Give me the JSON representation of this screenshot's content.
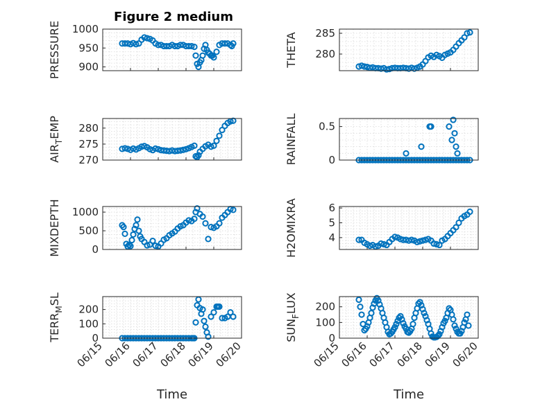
{
  "figure": {
    "title": "Figure 2 medium"
  },
  "colors": {
    "marker": "#0072BD",
    "axis": "#262626",
    "grid": "#d9d9d9"
  },
  "chart_data": [
    {
      "id": "pressure",
      "type": "scatter",
      "marker": "circle-open",
      "title": "Figure 2 medium",
      "xlabel": "",
      "ylabel": "PRESSURE",
      "xlim": [
        "06/15",
        "06/20"
      ],
      "ylim": [
        890,
        1000
      ],
      "yticks": [
        900,
        950,
        1000
      ],
      "grid": true,
      "series": [
        {
          "x": [
            15.7,
            15.8,
            15.9,
            16.0,
            16.1,
            16.2,
            16.3,
            16.4,
            16.5,
            16.6,
            16.7,
            16.8,
            16.9,
            17.0,
            17.1,
            17.2,
            17.3,
            17.4,
            17.5,
            17.6,
            17.7,
            17.8,
            17.9,
            18.0,
            18.1,
            18.2,
            18.3,
            18.35,
            18.4,
            18.45,
            18.5,
            18.55,
            18.6,
            18.65,
            18.7,
            18.75,
            18.8,
            18.85,
            18.9,
            18.95,
            19.0,
            19.1,
            19.2,
            19.3,
            19.4,
            19.5,
            19.6,
            19.65,
            19.7
          ],
          "y": [
            962,
            962,
            962,
            960,
            963,
            960,
            962,
            972,
            978,
            976,
            974,
            970,
            962,
            958,
            958,
            955,
            955,
            955,
            958,
            955,
            955,
            958,
            958,
            955,
            955,
            955,
            953,
            930,
            908,
            900,
            912,
            918,
            930,
            948,
            958,
            945,
            938,
            935,
            930,
            930,
            925,
            940,
            958,
            962,
            962,
            962,
            958,
            955,
            962
          ]
        }
      ]
    },
    {
      "id": "theta",
      "type": "scatter",
      "marker": "circle-open",
      "xlabel": "",
      "ylabel": "THETA",
      "xlim": [
        "06/15",
        "06/20"
      ],
      "ylim": [
        276,
        286
      ],
      "yticks": [
        280,
        285
      ],
      "grid": true,
      "series": [
        {
          "x": [
            15.7,
            15.8,
            15.9,
            16.0,
            16.1,
            16.2,
            16.3,
            16.4,
            16.5,
            16.6,
            16.7,
            16.8,
            16.9,
            17.0,
            17.1,
            17.2,
            17.3,
            17.4,
            17.5,
            17.6,
            17.7,
            17.8,
            17.9,
            18.0,
            18.1,
            18.2,
            18.3,
            18.4,
            18.5,
            18.6,
            18.7,
            18.8,
            18.9,
            19.0,
            19.1,
            19.2,
            19.3,
            19.4,
            19.5,
            19.6,
            19.7
          ],
          "y": [
            277,
            277.2,
            277,
            276.9,
            276.7,
            276.8,
            276.6,
            276.6,
            276.5,
            276.6,
            276.3,
            276.4,
            276.6,
            276.7,
            276.6,
            276.6,
            276.7,
            276.6,
            276.5,
            276.7,
            276.5,
            276.7,
            277,
            277.5,
            278.3,
            279.2,
            279.6,
            279.3,
            279.8,
            279.5,
            279.1,
            279.8,
            280.1,
            280.4,
            281,
            281.8,
            282.6,
            283.3,
            284,
            285,
            285.2
          ]
        }
      ]
    },
    {
      "id": "air_temp",
      "type": "scatter",
      "marker": "circle-open",
      "xlabel": "",
      "ylabel": "AIR_TEMP",
      "xlim": [
        "06/15",
        "06/20"
      ],
      "ylim": [
        270,
        283
      ],
      "yticks": [
        270,
        275,
        280
      ],
      "grid": true,
      "series": [
        {
          "x": [
            15.7,
            15.8,
            15.9,
            16.0,
            16.1,
            16.2,
            16.3,
            16.4,
            16.5,
            16.6,
            16.7,
            16.8,
            16.9,
            17.0,
            17.1,
            17.2,
            17.3,
            17.4,
            17.5,
            17.6,
            17.7,
            17.8,
            17.9,
            18.0,
            18.1,
            18.2,
            18.3,
            18.35,
            18.4,
            18.45,
            18.5,
            18.6,
            18.7,
            18.8,
            18.9,
            19.0,
            19.1,
            19.2,
            19.3,
            19.4,
            19.5,
            19.6,
            19.7
          ],
          "y": [
            273.5,
            273.7,
            273.5,
            273.2,
            273.6,
            273.3,
            273.7,
            274.2,
            274.4,
            274,
            273.4,
            273.1,
            273.6,
            273.4,
            273.1,
            273,
            272.9,
            272.8,
            273,
            272.8,
            272.9,
            273,
            273.2,
            273.4,
            273.7,
            274.1,
            274.5,
            271.2,
            270.9,
            271.5,
            272.6,
            273.5,
            274.3,
            274.8,
            274.2,
            274.5,
            276,
            277.6,
            279.4,
            280.7,
            281.6,
            282.1,
            282.3
          ]
        }
      ]
    },
    {
      "id": "rainfall",
      "type": "scatter",
      "marker": "circle-open",
      "xlabel": "",
      "ylabel": "RAINFALL",
      "xlim": [
        "06/15",
        "06/20"
      ],
      "ylim": [
        0,
        0.62
      ],
      "yticks": [
        0,
        0.5
      ],
      "grid": true,
      "series": [
        {
          "x": [
            15.7,
            15.8,
            15.9,
            16.0,
            16.1,
            16.2,
            16.3,
            16.4,
            16.5,
            16.6,
            16.7,
            16.8,
            16.9,
            17.0,
            17.1,
            17.2,
            17.3,
            17.4,
            17.5,
            17.6,
            17.7,
            17.8,
            17.9,
            18.0,
            18.1,
            18.2,
            18.3,
            18.4,
            18.5,
            18.6,
            18.7,
            18.8,
            18.9,
            19.0,
            19.1,
            19.2,
            19.3,
            19.4,
            19.5,
            19.6,
            19.7,
            17.4,
            17.95,
            18.25,
            18.3,
            18.95,
            19.1,
            19.15,
            19.05,
            19.2,
            19.25
          ],
          "y": [
            0,
            0,
            0,
            0,
            0,
            0,
            0,
            0,
            0,
            0,
            0,
            0,
            0,
            0,
            0,
            0,
            0,
            0,
            0,
            0,
            0,
            0,
            0,
            0,
            0,
            0,
            0,
            0,
            0,
            0,
            0,
            0,
            0,
            0,
            0,
            0,
            0,
            0,
            0,
            0,
            0,
            0.1,
            0.2,
            0.5,
            0.5,
            0.5,
            0.6,
            0.4,
            0.3,
            0.2,
            0.1
          ]
        }
      ]
    },
    {
      "id": "mixdepth",
      "type": "scatter",
      "marker": "circle-open",
      "xlabel": "",
      "ylabel": "MIXDEPTH",
      "xlim": [
        "06/15",
        "06/20"
      ],
      "ylim": [
        0,
        1150
      ],
      "yticks": [
        0,
        500,
        1000
      ],
      "grid": true,
      "series": [
        {
          "x": [
            15.7,
            15.75,
            15.8,
            15.85,
            15.9,
            15.95,
            16.0,
            16.05,
            16.1,
            16.15,
            16.2,
            16.25,
            16.3,
            16.35,
            16.4,
            16.5,
            16.6,
            16.7,
            16.8,
            16.9,
            17.0,
            17.1,
            17.2,
            17.3,
            17.4,
            17.5,
            17.6,
            17.7,
            17.8,
            17.9,
            18.0,
            18.1,
            18.2,
            18.3,
            18.35,
            18.4,
            18.5,
            18.6,
            18.7,
            18.8,
            18.9,
            19.0,
            19.1,
            19.2,
            19.3,
            19.4,
            19.5,
            19.6,
            19.7
          ],
          "y": [
            650,
            600,
            420,
            150,
            80,
            120,
            90,
            250,
            400,
            550,
            650,
            800,
            500,
            350,
            280,
            200,
            110,
            130,
            230,
            100,
            80,
            160,
            260,
            300,
            380,
            430,
            480,
            560,
            620,
            650,
            720,
            780,
            760,
            820,
            1000,
            1100,
            950,
            880,
            700,
            280,
            600,
            580,
            620,
            700,
            850,
            920,
            1000,
            1080,
            1060
          ]
        }
      ]
    },
    {
      "id": "h2omixra",
      "type": "scatter",
      "marker": "circle-open",
      "xlabel": "",
      "ylabel": "H2OMIXRA",
      "xlim": [
        "06/15",
        "06/20"
      ],
      "ylim": [
        3.2,
        6.1
      ],
      "yticks": [
        4,
        5,
        6
      ],
      "grid": true,
      "series": [
        {
          "x": [
            15.7,
            15.8,
            15.9,
            16.0,
            16.1,
            16.2,
            16.3,
            16.4,
            16.5,
            16.6,
            16.7,
            16.8,
            16.9,
            17.0,
            17.1,
            17.2,
            17.3,
            17.4,
            17.5,
            17.6,
            17.7,
            17.8,
            17.9,
            18.0,
            18.1,
            18.2,
            18.3,
            18.4,
            18.5,
            18.6,
            18.7,
            18.8,
            18.9,
            19.0,
            19.1,
            19.2,
            19.3,
            19.4,
            19.5,
            19.6,
            19.7
          ],
          "y": [
            3.85,
            3.85,
            3.65,
            3.55,
            3.45,
            3.5,
            3.4,
            3.45,
            3.6,
            3.55,
            3.5,
            3.7,
            3.9,
            4.05,
            4.0,
            3.9,
            3.85,
            3.85,
            3.8,
            3.85,
            3.8,
            3.7,
            3.75,
            3.8,
            3.85,
            3.9,
            3.8,
            3.6,
            3.55,
            3.5,
            3.8,
            3.9,
            4.1,
            4.3,
            4.5,
            4.7,
            5.0,
            5.3,
            5.45,
            5.55,
            5.75
          ]
        }
      ]
    },
    {
      "id": "terr_msl",
      "type": "scatter",
      "marker": "circle-open",
      "xlabel": "Time",
      "ylabel": "TERR_MSL",
      "xlim": [
        "06/15",
        "06/20"
      ],
      "ylim": [
        0,
        290
      ],
      "yticks": [
        0,
        100,
        200
      ],
      "grid": true,
      "series": [
        {
          "x": [
            15.7,
            15.8,
            15.9,
            16.0,
            16.1,
            16.2,
            16.3,
            16.4,
            16.5,
            16.6,
            16.7,
            16.8,
            16.9,
            17.0,
            17.1,
            17.2,
            17.3,
            17.4,
            17.5,
            17.6,
            17.7,
            17.8,
            17.9,
            18.0,
            18.1,
            18.2,
            18.25,
            18.3,
            18.35,
            18.4,
            18.45,
            18.5,
            18.55,
            18.6,
            18.65,
            18.7,
            18.75,
            18.8,
            18.9,
            19.0,
            19.1,
            19.15,
            19.2,
            19.3,
            19.4,
            19.5,
            19.6,
            19.7
          ],
          "y": [
            0,
            0,
            0,
            0,
            0,
            0,
            0,
            0,
            0,
            0,
            0,
            0,
            0,
            0,
            0,
            0,
            0,
            0,
            0,
            0,
            0,
            0,
            0,
            0,
            0,
            0,
            0,
            0,
            110,
            230,
            270,
            210,
            170,
            200,
            120,
            80,
            40,
            10,
            150,
            180,
            220,
            220,
            220,
            140,
            140,
            150,
            180,
            150
          ]
        }
      ]
    },
    {
      "id": "sun_flux",
      "type": "scatter",
      "marker": "circle-open",
      "xlabel": "Time",
      "ylabel": "SUN_FLUX",
      "xlim": [
        "06/15",
        "06/20"
      ],
      "ylim": [
        0,
        265
      ],
      "yticks": [
        0,
        100,
        200
      ],
      "grid": true,
      "series": [
        {
          "x": [
            15.7,
            15.75,
            15.8,
            15.85,
            15.9,
            15.95,
            16.0,
            16.05,
            16.1,
            16.15,
            16.2,
            16.25,
            16.3,
            16.35,
            16.4,
            16.45,
            16.5,
            16.55,
            16.6,
            16.65,
            16.7,
            16.75,
            16.8,
            16.85,
            16.9,
            16.95,
            17.0,
            17.05,
            17.1,
            17.15,
            17.2,
            17.25,
            17.3,
            17.35,
            17.4,
            17.45,
            17.5,
            17.55,
            17.6,
            17.65,
            17.7,
            17.75,
            17.8,
            17.85,
            17.9,
            17.95,
            18.0,
            18.05,
            18.1,
            18.15,
            18.2,
            18.25,
            18.3,
            18.35,
            18.4,
            18.45,
            18.5,
            18.55,
            18.6,
            18.65,
            18.7,
            18.75,
            18.8,
            18.85,
            18.9,
            18.95,
            19.0,
            19.05,
            19.1,
            19.15,
            19.2,
            19.25,
            19.3,
            19.35,
            19.4,
            19.45,
            19.5,
            19.55,
            19.6,
            19.65
          ],
          "y": [
            245,
            200,
            150,
            90,
            50,
            60,
            75,
            100,
            130,
            160,
            195,
            220,
            240,
            255,
            240,
            215,
            190,
            160,
            130,
            100,
            70,
            40,
            25,
            30,
            40,
            55,
            70,
            90,
            110,
            130,
            140,
            120,
            95,
            75,
            60,
            40,
            35,
            45,
            60,
            90,
            130,
            160,
            190,
            220,
            230,
            210,
            185,
            160,
            140,
            115,
            90,
            60,
            30,
            10,
            5,
            5,
            8,
            15,
            25,
            45,
            70,
            95,
            110,
            130,
            160,
            190,
            180,
            150,
            120,
            80,
            60,
            40,
            30,
            30,
            45,
            70,
            100,
            120,
            150,
            80
          ]
        }
      ]
    }
  ]
}
